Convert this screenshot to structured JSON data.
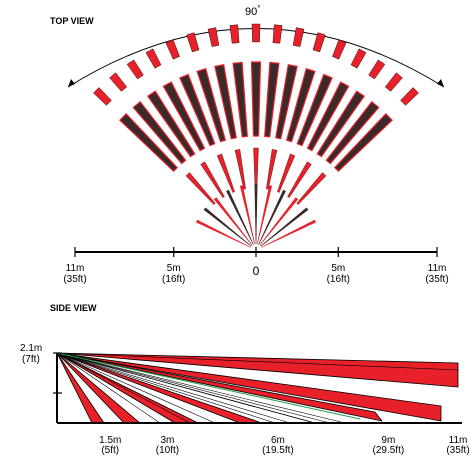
{
  "top_view": {
    "title": "TOP VIEW",
    "angle_label": "90",
    "angle_unit": "°",
    "axis_labels": [
      {
        "m": "11m",
        "ft": "(35ft)",
        "pos": -11
      },
      {
        "m": "5m",
        "ft": "(16ft)",
        "pos": -5
      },
      {
        "m": "0",
        "ft": "",
        "pos": 0
      },
      {
        "m": "5m",
        "ft": "(16ft)",
        "pos": 5
      },
      {
        "m": "11m",
        "ft": "(35ft)",
        "pos": 11
      }
    ]
  },
  "side_view": {
    "title": "SIDE VIEW",
    "height_label": "2.1m",
    "height_label_ft": "(7ft)",
    "axis_labels": [
      {
        "m": "1.5m",
        "ft": "(5ft)",
        "pos": 1.5
      },
      {
        "m": "3m",
        "ft": "(10ft)",
        "pos": 3
      },
      {
        "m": "6m",
        "ft": "(19.5ft)",
        "pos": 6
      },
      {
        "m": "9m",
        "ft": "(29.5ft)",
        "pos": 9
      },
      {
        "m": "11m",
        "ft": "(35ft)",
        "pos": 11
      }
    ]
  },
  "colors": {
    "zone_red": "#e8202a",
    "zone_dark": "#3a2a2a",
    "outline": "#000000",
    "accent_green": "#2a9a4a"
  }
}
